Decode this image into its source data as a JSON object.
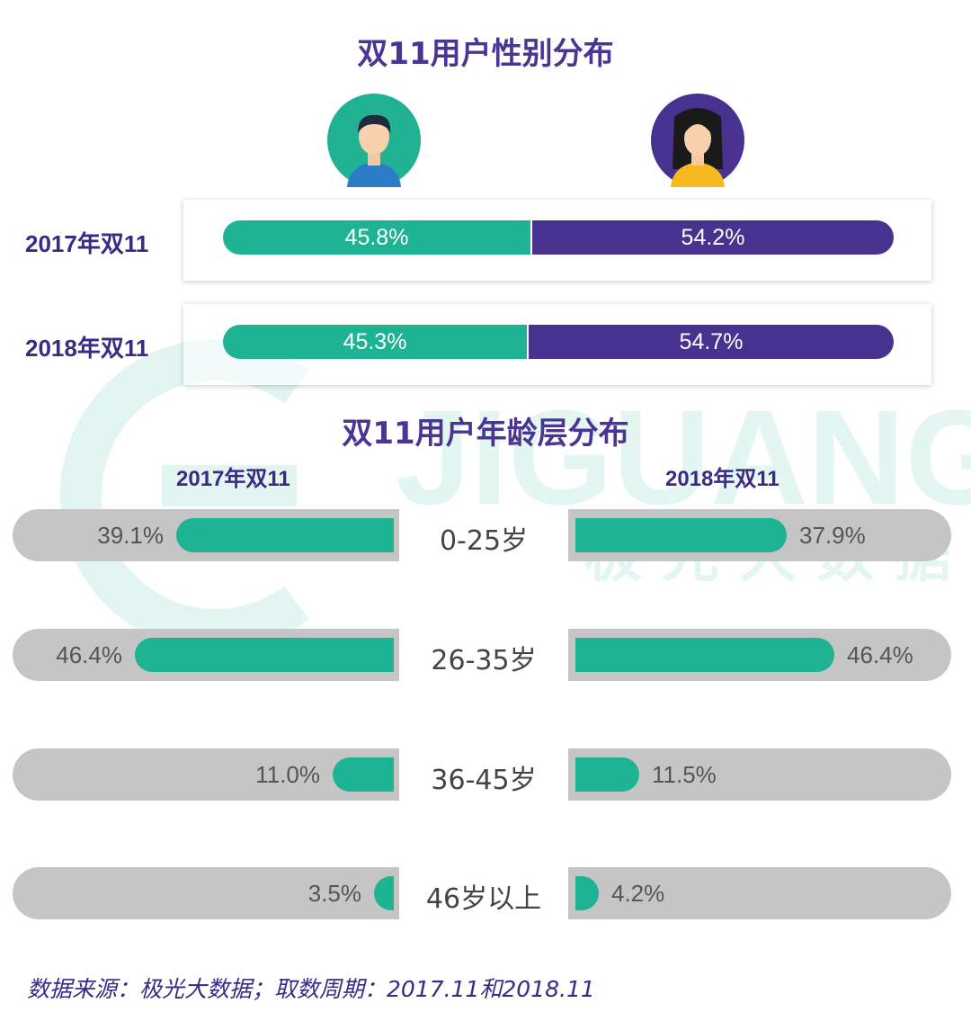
{
  "gender_title": "双11用户性别分布",
  "age_title": "双11用户年龄层分布",
  "watermark_text": "JIGUANG",
  "watermark_sub": "极光大数据",
  "footer": "数据来源：极光大数据；取数周期：2017.11和2018.11",
  "colors": {
    "male": "#1db393",
    "female": "#47328f",
    "track": "#c5c5c5",
    "title": "#4b3594"
  },
  "icons": {
    "male": "male-avatar-icon",
    "female": "female-avatar-icon"
  },
  "chart_data": [
    {
      "type": "bar",
      "title": "双11用户性别分布",
      "categories": [
        "2017年双11",
        "2018年双11"
      ],
      "series": [
        {
          "values": [
            45.8,
            54.2
          ]
        },
        {
          "values": [
            45.3,
            54.7
          ]
        }
      ],
      "labels": {
        "2017": [
          "45.8%",
          "54.2%"
        ],
        "2018": [
          "45.3%",
          "54.7%"
        ]
      }
    },
    {
      "type": "bar",
      "title": "双11用户年龄层分布",
      "categories": [
        "0-25岁",
        "26-35岁",
        "36-45岁",
        "46岁以上"
      ],
      "series": [
        {
          "name": "2017年双11",
          "values": [
            39.1,
            46.4,
            11.0,
            3.5
          ],
          "labels": [
            "39.1%",
            "46.4%",
            "11.0%",
            "3.5%"
          ]
        },
        {
          "name": "2018年双11",
          "values": [
            37.9,
            46.4,
            11.5,
            4.2
          ],
          "labels": [
            "37.9%",
            "46.4%",
            "11.5%",
            "4.2%"
          ]
        }
      ]
    }
  ]
}
